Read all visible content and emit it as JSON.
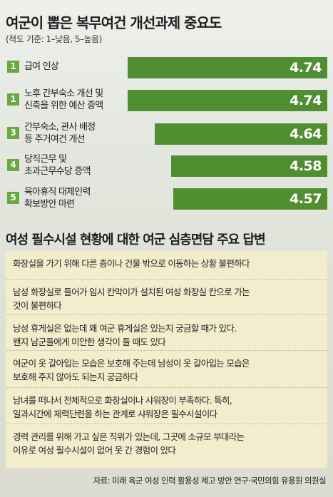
{
  "title": "여군이 뽑은 복무여건 개선과제 중요도",
  "subtitle": "(척도 기준: 1–낮음, 5–높음)",
  "chart_data": {
    "type": "bar",
    "orientation": "horizontal",
    "categories": [
      "급여 인상",
      "노후 간부숙소 개선 및 신축을 위한 예산 증액",
      "간부숙소, 관사 배정 등 주거여건 개선",
      "당직근무 및 초과근무수당 증액",
      "육아휴직 대체인력 확보방안 마련"
    ],
    "values": [
      4.74,
      4.74,
      4.64,
      4.58,
      4.57
    ],
    "bar_color": "#4f8f31",
    "badge_color": "#6aa840"
  },
  "bars": [
    {
      "rank": "1",
      "lines": [
        "급여 인상"
      ],
      "value": "4.74"
    },
    {
      "rank": "1",
      "lines": [
        "노후 간부숙소 개선 및",
        "신축을 위한 예산 증액"
      ],
      "value": "4.74"
    },
    {
      "rank": "3",
      "lines": [
        "간부숙소, 관사 배정",
        "등 주거여건 개선"
      ],
      "value": "4.64"
    },
    {
      "rank": "4",
      "lines": [
        "당직근무 및",
        "초과근무수당 증액"
      ],
      "value": "4.58"
    },
    {
      "rank": "5",
      "lines": [
        "육아휴직 대체인력",
        "확보방안 마련"
      ],
      "value": "4.57"
    }
  ],
  "section_title": "여성 필수시설 현황에 대한 여군 심층면담 주요 답변",
  "answers": [
    [
      "화장실을 가기 위해 다른 층이나 건물 밖으로 이동하는 상황 불편하다"
    ],
    [
      "남성 화장실로 들어가 임시 칸막이가 설치된 여성 화장실 칸으로 가는",
      "것이 불편하다"
    ],
    [
      "남성 휴게실은 없는데 왜 여군 휴게실은 있는지 궁금할 때가 있다.",
      "왠지 남군들에게 미안한 생각이 들 때도 있다"
    ],
    [
      "여군이 옷 갈아입는 모습은 보호해 주는데 남성이 옷 갈아입는 모습은",
      "보호해 주지 않아도 되는지 궁금하다"
    ],
    [
      "남녀를 떠나서 전체적으로 화장실이나 샤워장이 부족하다. 특히,",
      "일과시간에 체력단련을 하는 관계로 샤워장은 필수시설이다"
    ],
    [
      "경력 관리를 위해 가고 싶은 직위가 있는데, 그곳에 소규모 부대라는",
      "이유로 여성 필수시설이 없어 못 간 경험이 있다"
    ]
  ],
  "answers_bg": "#f3edce",
  "source": "자료: 미래 육군 여성 인력 활용성 제고 방안 연구·국민의힘 유용원 의원실"
}
